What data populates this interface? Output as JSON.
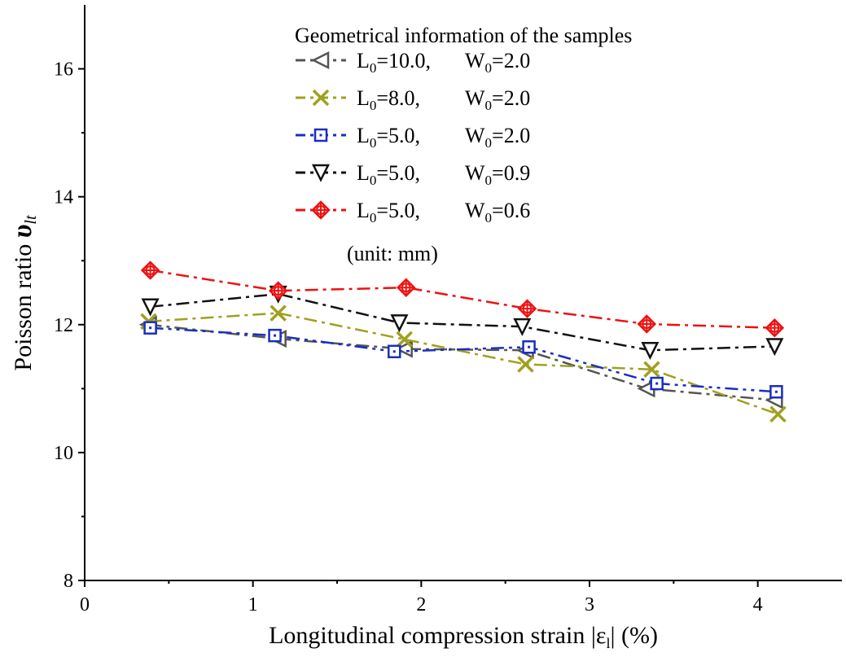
{
  "chart_data": {
    "type": "line",
    "xlabel": "Longitudinal compression strain |ε",
    "xlabel_sub": "l",
    "xlabel_tail": "| (%)",
    "ylabel": "Poisson ratio ",
    "ylabel_symbol": "υ",
    "ylabel_sub": "lt",
    "xlim": [
      0,
      4.5
    ],
    "ylim": [
      8,
      17
    ],
    "x_ticks": [
      0,
      1,
      2,
      3,
      4
    ],
    "x_tick_labels": [
      "0",
      "1",
      "2",
      "3",
      "4"
    ],
    "y_ticks": [
      8,
      10,
      12,
      14,
      16
    ],
    "y_tick_labels": [
      "8",
      "10",
      "12",
      "14",
      "16"
    ],
    "grid": false,
    "legend_placement": "top-right",
    "legend_title": "Geometrical information of the samples",
    "legend_note": "(unit: mm)",
    "series": [
      {
        "id": "s-l10-w20",
        "name_L": "L",
        "name_L_sub": "0",
        "name_L_val": "=10.0,",
        "name_W": "W",
        "name_W_sub": "0",
        "name_W_val": "=2.0",
        "color": "#555555",
        "marker": "triangle-left",
        "dash": "16,6,4,6",
        "x": [
          0.38,
          1.15,
          1.9,
          2.62,
          3.34,
          4.1
        ],
        "y": [
          12.0,
          11.78,
          11.62,
          11.6,
          11.0,
          10.82
        ]
      },
      {
        "id": "s-l8-w20",
        "name_L": "L",
        "name_L_sub": "0",
        "name_L_val": "=8.0,",
        "name_W": "W",
        "name_W_sub": "0",
        "name_W_val": "=2.0",
        "color": "#a0a020",
        "marker": "x",
        "dash": "16,6,4,6",
        "x": [
          0.38,
          1.15,
          1.9,
          2.62,
          3.37,
          4.12
        ],
        "y": [
          12.05,
          12.18,
          11.77,
          11.38,
          11.3,
          10.6
        ]
      },
      {
        "id": "s-l5-w20",
        "name_L": "L",
        "name_L_sub": "0",
        "name_L_val": "=5.0,",
        "name_W": "W",
        "name_W_sub": "0",
        "name_W_val": "=2.0",
        "color": "#1a2fc0",
        "marker": "square-dot",
        "dash": "16,6,4,6,4,6",
        "x": [
          0.39,
          1.13,
          1.84,
          2.64,
          3.4,
          4.11
        ],
        "y": [
          11.95,
          11.83,
          11.58,
          11.65,
          11.08,
          10.95
        ]
      },
      {
        "id": "s-l5-w09",
        "name_L": "L",
        "name_L_sub": "0",
        "name_L_val": "=5.0,",
        "name_W": "W",
        "name_W_sub": "0",
        "name_W_val": "=0.9",
        "color": "#111111",
        "marker": "triangle-down",
        "dash": "16,6,4,6",
        "x": [
          0.39,
          1.15,
          1.87,
          2.6,
          3.36,
          4.1
        ],
        "y": [
          12.28,
          12.48,
          12.03,
          11.97,
          11.6,
          11.66
        ]
      },
      {
        "id": "s-l5-w06",
        "name_L": "L",
        "name_L_sub": "0",
        "name_L_val": "=5.0,",
        "name_W": "W",
        "name_W_sub": "0",
        "name_W_val": "=0.6",
        "color": "#ee1111",
        "marker": "diamond-cross",
        "dash": "16,6,4,6",
        "x": [
          0.39,
          1.15,
          1.91,
          2.63,
          3.34,
          4.1
        ],
        "y": [
          12.85,
          12.53,
          12.58,
          12.25,
          12.01,
          11.95
        ]
      }
    ]
  }
}
